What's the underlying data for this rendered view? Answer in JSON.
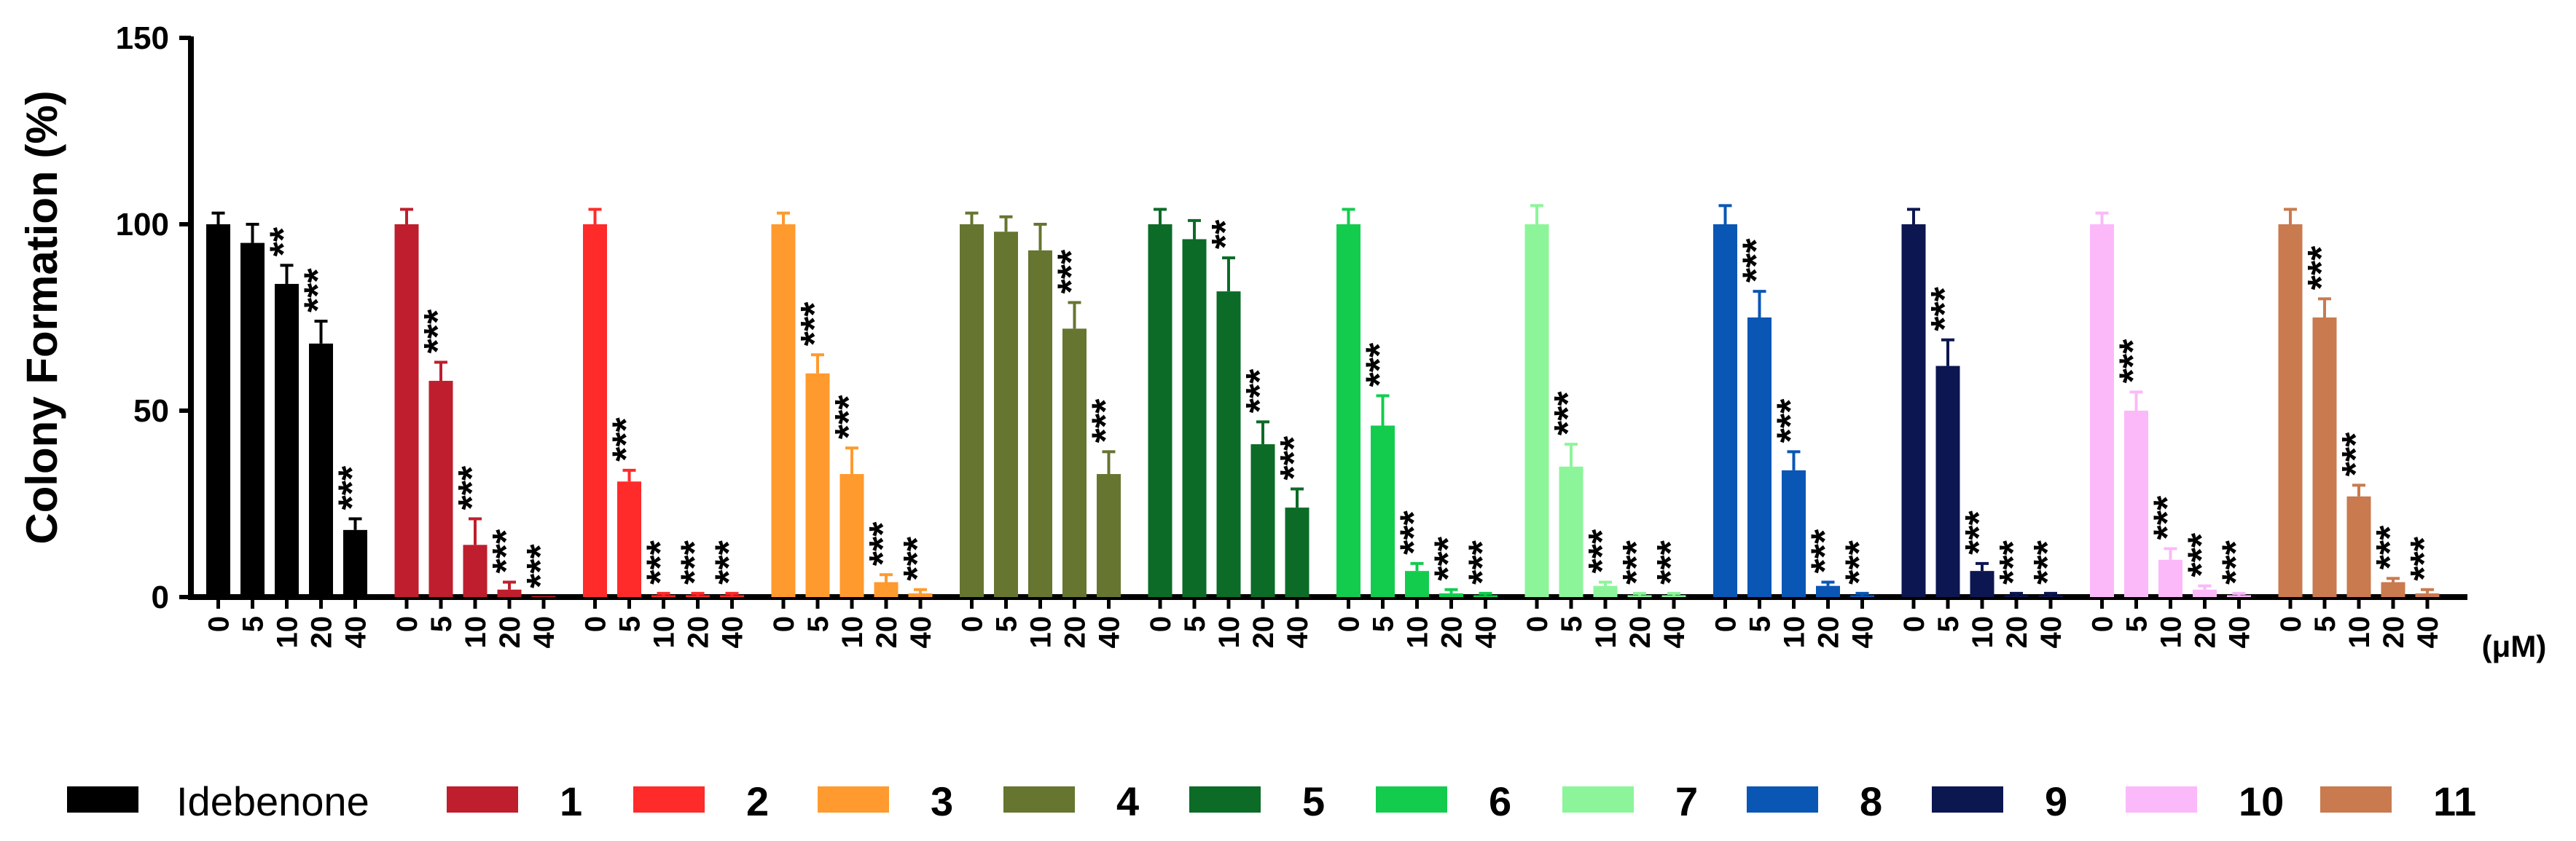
{
  "chart_data": {
    "type": "bar",
    "ylabel": "Colony Formation (%)",
    "xlabel": "",
    "x_unit": "(μM)",
    "ylim": [
      0,
      150
    ],
    "yticks": [
      0,
      50,
      100,
      150
    ],
    "concentrations": [
      "0",
      "5",
      "10",
      "20",
      "40"
    ],
    "groups": [
      {
        "name": "Idebenone",
        "color": "#000000",
        "values": [
          100,
          95,
          84,
          68,
          18
        ],
        "errors": [
          3,
          5,
          5,
          6,
          3
        ],
        "sig": [
          "",
          "",
          "**",
          "***",
          "***"
        ]
      },
      {
        "name": "1",
        "color": "#BE1E2D",
        "values": [
          100,
          58,
          14,
          2,
          0
        ],
        "errors": [
          4,
          5,
          7,
          2,
          0
        ],
        "sig": [
          "",
          "***",
          "***",
          "***",
          "***"
        ]
      },
      {
        "name": "2",
        "color": "#FF2A2A",
        "values": [
          100,
          31,
          0.5,
          0.5,
          0.5
        ],
        "errors": [
          4,
          3,
          0.5,
          0.5,
          0.5
        ],
        "sig": [
          "",
          "***",
          "***",
          "***",
          "***"
        ]
      },
      {
        "name": "3",
        "color": "#FF9A2E",
        "values": [
          100,
          60,
          33,
          4,
          1
        ],
        "errors": [
          3,
          5,
          7,
          2,
          1
        ],
        "sig": [
          "",
          "***",
          "***",
          "***",
          "***"
        ]
      },
      {
        "name": "4",
        "color": "#667530",
        "values": [
          100,
          98,
          93,
          72,
          33
        ],
        "errors": [
          3,
          4,
          7,
          7,
          6
        ],
        "sig": [
          "",
          "",
          "",
          "***",
          "***"
        ]
      },
      {
        "name": "5",
        "color": "#0B6B27",
        "values": [
          100,
          96,
          82,
          41,
          24
        ],
        "errors": [
          4,
          5,
          9,
          6,
          5
        ],
        "sig": [
          "",
          "",
          "**",
          "***",
          "***"
        ]
      },
      {
        "name": "6",
        "color": "#13CC4E",
        "values": [
          100,
          46,
          7,
          1,
          0.5
        ],
        "errors": [
          4,
          8,
          2,
          1,
          0.5
        ],
        "sig": [
          "",
          "***",
          "***",
          "***",
          "***"
        ]
      },
      {
        "name": "7",
        "color": "#8CF59A",
        "values": [
          100,
          35,
          3,
          0.5,
          0.5
        ],
        "errors": [
          5,
          6,
          1,
          0.5,
          0.5
        ],
        "sig": [
          "",
          "***",
          "***",
          "***",
          "***"
        ]
      },
      {
        "name": "8",
        "color": "#0A56B5",
        "values": [
          100,
          75,
          34,
          3,
          0.5
        ],
        "errors": [
          5,
          7,
          5,
          1,
          0.5
        ],
        "sig": [
          "",
          "***",
          "***",
          "***",
          "***"
        ]
      },
      {
        "name": "9",
        "color": "#0C1650",
        "values": [
          100,
          62,
          7,
          0.5,
          0.5
        ],
        "errors": [
          4,
          7,
          2,
          0.5,
          0.5
        ],
        "sig": [
          "",
          "***",
          "***",
          "***",
          "***"
        ]
      },
      {
        "name": "10",
        "color": "#FBB9F9",
        "values": [
          100,
          50,
          10,
          2,
          0.5
        ],
        "errors": [
          3,
          5,
          3,
          1,
          0.5
        ],
        "sig": [
          "",
          "***",
          "***",
          "***",
          "***"
        ]
      },
      {
        "name": "11",
        "color": "#C97A4E",
        "values": [
          100,
          75,
          27,
          4,
          1
        ],
        "errors": [
          4,
          5,
          3,
          1,
          1
        ],
        "sig": [
          "",
          "***",
          "***",
          "***",
          "***"
        ]
      }
    ],
    "legend_placement": "bottom",
    "grid": false
  }
}
